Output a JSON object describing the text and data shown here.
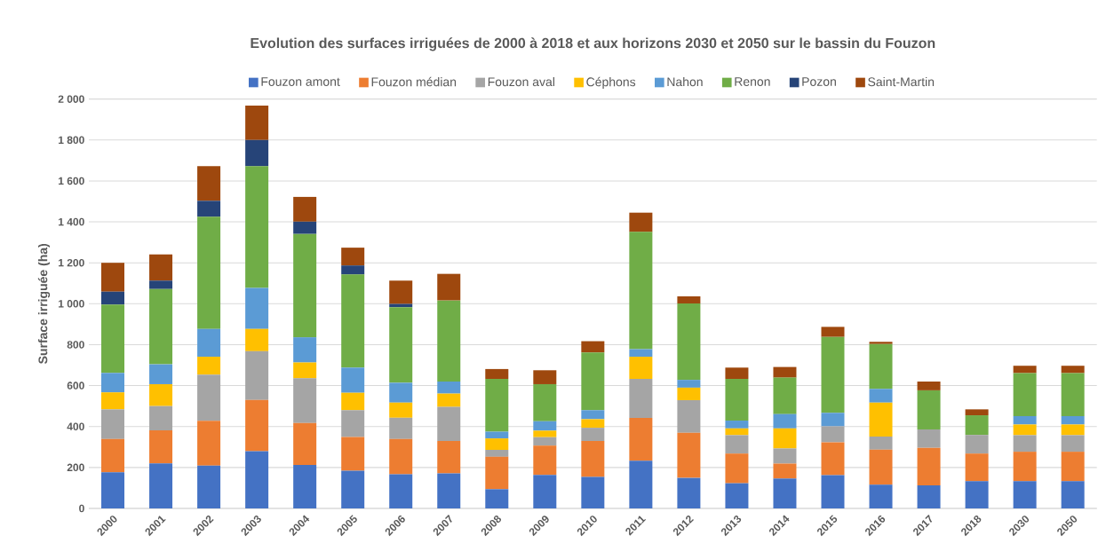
{
  "chart_data": {
    "type": "bar",
    "stacked": true,
    "title": "Evolution des surfaces irriguées de 2000 à 2018 et aux horizons 2030 et 2050 sur le bassin du Fouzon",
    "ylabel": "Surface irriguée (ha)",
    "categories": [
      "2000",
      "2001",
      "2002",
      "2003",
      "2004",
      "2005",
      "2006",
      "2007",
      "2008",
      "2009",
      "2010",
      "2011",
      "2012",
      "2013",
      "2014",
      "2015",
      "2016",
      "2017",
      "2018",
      "2030",
      "2050"
    ],
    "series": [
      {
        "name": "Fouzon amont",
        "color": "#4472c4",
        "values": [
          177,
          220,
          209,
          280,
          212,
          184,
          167,
          171,
          94,
          164,
          154,
          233,
          149,
          123,
          146,
          162,
          116,
          113,
          133,
          133,
          133
        ]
      },
      {
        "name": "Fouzon médian",
        "color": "#ed7d31",
        "values": [
          162,
          161,
          219,
          250,
          205,
          165,
          172,
          158,
          158,
          143,
          175,
          209,
          221,
          145,
          73,
          161,
          171,
          183,
          135,
          144,
          144
        ]
      },
      {
        "name": "Fouzon aval",
        "color": "#a5a5a5",
        "values": [
          145,
          119,
          226,
          238,
          219,
          131,
          104,
          167,
          34,
          41,
          65,
          191,
          159,
          90,
          74,
          78,
          64,
          90,
          91,
          81,
          81
        ]
      },
      {
        "name": "Céphons",
        "color": "#ffc000",
        "values": [
          83,
          107,
          87,
          109,
          77,
          85,
          74,
          65,
          56,
          32,
          42,
          108,
          61,
          33,
          98,
          0,
          166,
          0,
          0,
          52,
          52
        ]
      },
      {
        "name": "Nahon",
        "color": "#5b9bd5",
        "values": [
          95,
          97,
          136,
          200,
          123,
          123,
          97,
          59,
          33,
          46,
          44,
          37,
          38,
          38,
          70,
          66,
          67,
          0,
          0,
          41,
          41
        ]
      },
      {
        "name": "Renon",
        "color": "#70ad47",
        "values": [
          334,
          368,
          548,
          595,
          505,
          455,
          369,
          396,
          258,
          181,
          282,
          573,
          373,
          204,
          178,
          371,
          219,
          191,
          96,
          210,
          210
        ]
      },
      {
        "name": "Pozon",
        "color": "#264478",
        "values": [
          63,
          41,
          78,
          128,
          60,
          44,
          16,
          0,
          0,
          0,
          0,
          0,
          0,
          0,
          0,
          0,
          0,
          0,
          0,
          0,
          0
        ]
      },
      {
        "name": "Saint-Martin",
        "color": "#9e480e",
        "values": [
          141,
          128,
          169,
          168,
          121,
          87,
          114,
          130,
          48,
          68,
          55,
          94,
          35,
          55,
          52,
          49,
          11,
          43,
          29,
          36,
          36
        ]
      }
    ],
    "ylim": [
      0,
      2000
    ],
    "yticks": [
      0,
      200,
      400,
      600,
      800,
      {
        "value": 1000,
        "label": "1 000"
      },
      {
        "value": 1200,
        "label": "1 200"
      },
      {
        "value": 1400,
        "label": "1 400"
      },
      {
        "value": 1600,
        "label": "1 600"
      },
      {
        "value": 1800,
        "label": "1 800"
      },
      {
        "value": 2000,
        "label": "2 000"
      }
    ],
    "grid": "y",
    "legend": "top"
  }
}
